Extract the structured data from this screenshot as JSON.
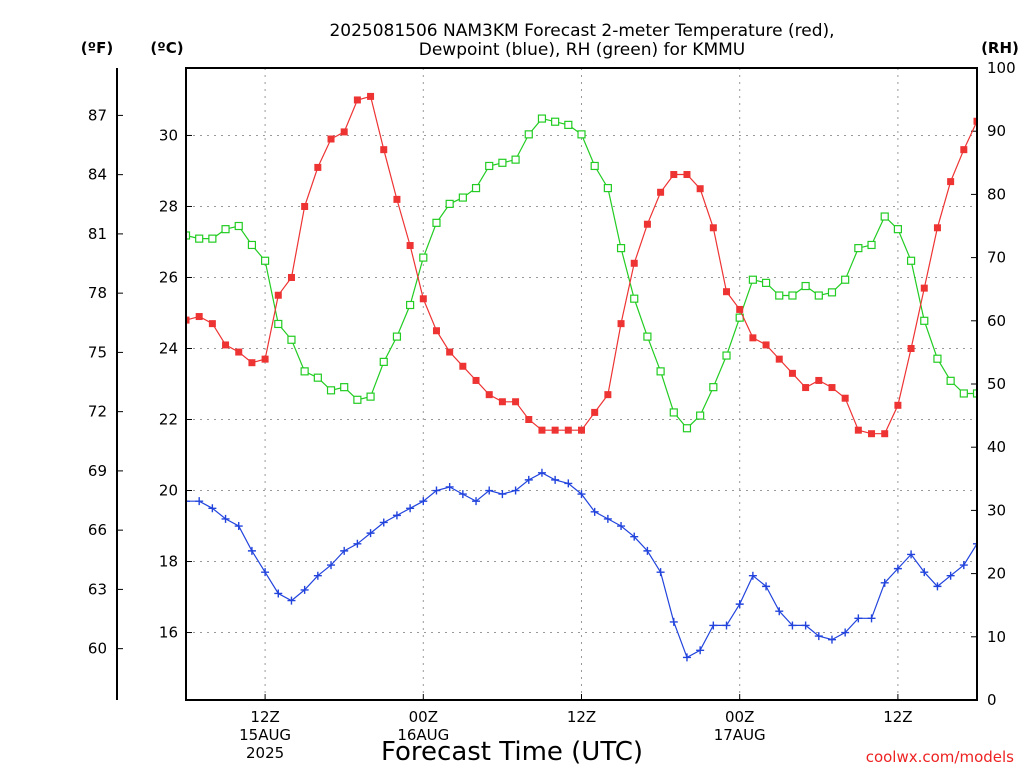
{
  "title_line1": "2025081506 NAM3KM Forecast 2-meter Temperature (red),",
  "title_line2": "Dewpoint (blue), RH (green) for KMMU",
  "xlabel": "Forecast Time (UTC)",
  "credit": "coolwx.com/models",
  "units": {
    "f": "(ºF)",
    "c": "(ºC)",
    "rh": "(RH)"
  },
  "x_ticks": [
    {
      "hour": 12,
      "l1": "12Z",
      "l2": "15AUG",
      "l3": "2025"
    },
    {
      "hour": 24,
      "l1": "00Z",
      "l2": "16AUG",
      "l3": ""
    },
    {
      "hour": 36,
      "l1": "12Z",
      "l2": "",
      "l3": ""
    },
    {
      "hour": 48,
      "l1": "00Z",
      "l2": "17AUG",
      "l3": ""
    },
    {
      "hour": 60,
      "l1": "12Z",
      "l2": "",
      "l3": ""
    }
  ],
  "c_ticks": [
    "16",
    "18",
    "20",
    "22",
    "24",
    "26",
    "28",
    "30"
  ],
  "f_ticks": [
    "60",
    "63",
    "66",
    "69",
    "72",
    "75",
    "78",
    "81",
    "84",
    "87"
  ],
  "rh_ticks": [
    "0",
    "10",
    "20",
    "30",
    "40",
    "50",
    "60",
    "70",
    "80",
    "90",
    "100"
  ],
  "colors": {
    "temperature": "#ee3333",
    "dewpoint": "#2244dd",
    "rh": "#22cc22"
  },
  "chart_data": {
    "type": "line",
    "x_unit": "forecast hour from 2025-08-15 06Z",
    "xlim": [
      6,
      66
    ],
    "ylim_c": [
      14.1,
      31.9
    ],
    "ylim_f": [
      57.4,
      89.4
    ],
    "ylim_rh": [
      0,
      100
    ],
    "grid": true,
    "x": [
      6,
      7,
      8,
      9,
      10,
      11,
      12,
      13,
      14,
      15,
      16,
      17,
      18,
      19,
      20,
      21,
      22,
      23,
      24,
      25,
      26,
      27,
      28,
      29,
      30,
      31,
      32,
      33,
      34,
      35,
      36,
      37,
      38,
      39,
      40,
      41,
      42,
      43,
      44,
      45,
      46,
      47,
      48,
      49,
      50,
      51,
      52,
      53,
      54,
      55,
      56,
      57,
      58,
      59,
      60,
      61,
      62,
      63,
      64,
      65,
      66
    ],
    "temperature_c": [
      24.8,
      24.9,
      24.7,
      24.1,
      23.9,
      23.6,
      23.7,
      25.5,
      26.0,
      28.0,
      29.1,
      29.9,
      30.1,
      31.0,
      31.1,
      29.6,
      28.2,
      26.9,
      25.4,
      24.5,
      23.9,
      23.5,
      23.1,
      22.7,
      22.5,
      22.5,
      22.0,
      21.7,
      21.7,
      21.7,
      21.7,
      22.2,
      22.7,
      24.7,
      26.4,
      27.5,
      28.4,
      28.9,
      28.9,
      28.5,
      27.4,
      25.6,
      25.1,
      24.3,
      24.1,
      23.7,
      23.3,
      22.9,
      23.1,
      22.9,
      22.6,
      21.7,
      21.6,
      21.6,
      22.4,
      24.0,
      25.7,
      27.4,
      28.7,
      29.6,
      30.4
    ],
    "dewpoint_c": [
      19.7,
      19.7,
      19.5,
      19.2,
      19.0,
      18.3,
      17.7,
      17.1,
      16.9,
      17.2,
      17.6,
      17.9,
      18.3,
      18.5,
      18.8,
      19.1,
      19.3,
      19.5,
      19.7,
      20.0,
      20.1,
      19.9,
      19.7,
      20.0,
      19.9,
      20.0,
      20.3,
      20.5,
      20.3,
      20.2,
      19.9,
      19.4,
      19.2,
      19.0,
      18.7,
      18.3,
      17.7,
      16.3,
      15.3,
      15.5,
      16.2,
      16.2,
      16.8,
      17.6,
      17.3,
      16.6,
      16.2,
      16.2,
      15.9,
      15.8,
      16.0,
      16.4,
      16.4,
      17.4,
      17.8,
      18.2,
      17.7,
      17.3,
      17.6,
      17.9,
      18.5
    ],
    "rh_percent": [
      73.5,
      73,
      73,
      74.5,
      75,
      72,
      69.5,
      59.5,
      57,
      52,
      51,
      49,
      49.5,
      47.5,
      48,
      53.5,
      57.5,
      62.5,
      70,
      75.5,
      78.5,
      79.5,
      81,
      84.5,
      85,
      85.5,
      89.5,
      92,
      91.5,
      91,
      89.5,
      84.5,
      81,
      71.5,
      63.5,
      57.5,
      52,
      45.5,
      43,
      45,
      49.5,
      54.5,
      60.5,
      66.5,
      66,
      64,
      64,
      65.5,
      64,
      64.5,
      66.5,
      71.5,
      72,
      76.5,
      74.5,
      69.5,
      60,
      54,
      50.5,
      48.5,
      48.5
    ]
  }
}
